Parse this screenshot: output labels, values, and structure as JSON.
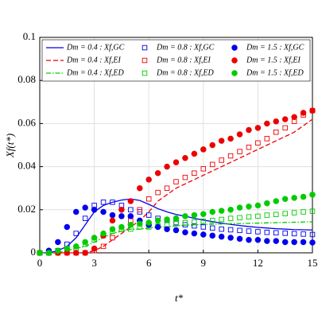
{
  "chart_data": {
    "type": "line",
    "x_label": "t*",
    "y_label": "Xf(t*)",
    "xlim": [
      0,
      15
    ],
    "ylim": [
      0,
      0.1
    ],
    "xticks": [
      0,
      3,
      6,
      9,
      12,
      15
    ],
    "yticks": [
      0,
      0.02,
      0.04,
      0.06,
      0.08,
      0.1
    ],
    "grid": true,
    "legend": "top",
    "x": [
      0,
      0.5,
      1,
      1.5,
      2,
      2.5,
      3,
      3.5,
      4,
      4.5,
      5,
      5.5,
      6,
      6.5,
      7,
      7.5,
      8,
      8.5,
      9,
      9.5,
      10,
      10.5,
      11,
      11.5,
      12,
      12.5,
      13,
      13.5,
      14,
      14.5,
      15
    ],
    "series": [
      {
        "name": "Dm = 0.4 : Xf,GC",
        "color": "#0000ee",
        "dash": "solid",
        "marker": null,
        "values": [
          0,
          0,
          0.001,
          0.003,
          0.007,
          0.013,
          0.019,
          0.022,
          0.0235,
          0.0245,
          0.025,
          0.0243,
          0.0225,
          0.0205,
          0.019,
          0.0178,
          0.017,
          0.016,
          0.0152,
          0.0145,
          0.0138,
          0.0132,
          0.0127,
          0.0122,
          0.0118,
          0.0115,
          0.0112,
          0.011,
          0.0108,
          0.0107,
          0.0106
        ]
      },
      {
        "name": "Dm = 0.4 : Xf,EI",
        "color": "#ee0000",
        "dash": "dashed",
        "marker": null,
        "values": [
          0,
          0,
          0,
          0,
          0,
          0,
          0.001,
          0.003,
          0.006,
          0.009,
          0.012,
          0.015,
          0.019,
          0.024,
          0.027,
          0.03,
          0.032,
          0.034,
          0.036,
          0.038,
          0.04,
          0.042,
          0.044,
          0.046,
          0.048,
          0.05,
          0.052,
          0.054,
          0.056,
          0.059,
          0.062
        ]
      },
      {
        "name": "Dm = 0.4 : Xf,ED",
        "color": "#00cc00",
        "dash": "dashdot",
        "marker": null,
        "values": [
          0,
          0,
          0,
          0.001,
          0.002,
          0.003,
          0.005,
          0.007,
          0.009,
          0.01,
          0.011,
          0.011,
          0.0115,
          0.012,
          0.012,
          0.0125,
          0.0128,
          0.013,
          0.0132,
          0.0133,
          0.0134,
          0.0135,
          0.0136,
          0.0137,
          0.0138,
          0.0139,
          0.014,
          0.0141,
          0.0142,
          0.0143,
          0.0144
        ]
      },
      {
        "name": "Dm = 0.8 : Xf,GC",
        "color": "#0000ee",
        "dash": null,
        "marker": "square",
        "filled": false,
        "values": [
          0,
          0,
          0.001,
          0.004,
          0.009,
          0.016,
          0.022,
          0.0235,
          0.0235,
          0.022,
          0.02,
          0.019,
          0.0175,
          0.016,
          0.015,
          0.014,
          0.013,
          0.0125,
          0.012,
          0.0115,
          0.011,
          0.0107,
          0.0104,
          0.0101,
          0.0098,
          0.0095,
          0.0093,
          0.0091,
          0.0089,
          0.0087,
          0.0085
        ]
      },
      {
        "name": "Dm = 0.8 : Xf,EI",
        "color": "#ee0000",
        "dash": null,
        "marker": "square",
        "filled": false,
        "values": [
          0,
          0,
          0,
          0,
          0,
          0,
          0.001,
          0.003,
          0.007,
          0.011,
          0.015,
          0.02,
          0.025,
          0.028,
          0.03,
          0.033,
          0.035,
          0.037,
          0.039,
          0.041,
          0.043,
          0.045,
          0.047,
          0.049,
          0.051,
          0.053,
          0.056,
          0.058,
          0.061,
          0.064,
          0.066
        ]
      },
      {
        "name": "Dm = 0.8 : Xf,ED",
        "color": "#00cc00",
        "dash": null,
        "marker": "square",
        "filled": false,
        "values": [
          0,
          0,
          0,
          0.001,
          0.002,
          0.004,
          0.006,
          0.008,
          0.01,
          0.011,
          0.011,
          0.012,
          0.012,
          0.0125,
          0.013,
          0.0135,
          0.014,
          0.0143,
          0.0147,
          0.015,
          0.0155,
          0.016,
          0.0163,
          0.0167,
          0.017,
          0.0175,
          0.0178,
          0.0182,
          0.0186,
          0.019,
          0.0193
        ]
      },
      {
        "name": "Dm = 1.5 : Xf,GC",
        "color": "#0000ee",
        "dash": null,
        "marker": "circle",
        "filled": true,
        "values": [
          0,
          0.001,
          0.005,
          0.012,
          0.019,
          0.021,
          0.02,
          0.019,
          0.0175,
          0.017,
          0.017,
          0.015,
          0.013,
          0.012,
          0.011,
          0.0105,
          0.0095,
          0.009,
          0.0085,
          0.008,
          0.0075,
          0.007,
          0.0065,
          0.006,
          0.006,
          0.0055,
          0.0055,
          0.005,
          0.005,
          0.005,
          0.0048
        ]
      },
      {
        "name": "Dm = 1.5 : Xf,EI",
        "color": "#ee0000",
        "dash": null,
        "marker": "circle",
        "filled": true,
        "values": [
          0,
          0,
          0,
          0,
          0,
          0,
          0.002,
          0.008,
          0.015,
          0.02,
          0.024,
          0.03,
          0.034,
          0.037,
          0.04,
          0.042,
          0.044,
          0.046,
          0.048,
          0.05,
          0.052,
          0.053,
          0.055,
          0.057,
          0.058,
          0.06,
          0.061,
          0.062,
          0.063,
          0.065,
          0.066
        ]
      },
      {
        "name": "Dm = 1.5 : Xf,ED",
        "color": "#00cc00",
        "dash": null,
        "marker": "circle",
        "filled": true,
        "values": [
          0,
          0,
          0.001,
          0.002,
          0.003,
          0.005,
          0.007,
          0.009,
          0.011,
          0.012,
          0.013,
          0.0135,
          0.014,
          0.015,
          0.0155,
          0.016,
          0.017,
          0.0175,
          0.018,
          0.019,
          0.0195,
          0.02,
          0.021,
          0.0215,
          0.022,
          0.023,
          0.024,
          0.025,
          0.0255,
          0.026,
          0.027
        ]
      }
    ]
  }
}
